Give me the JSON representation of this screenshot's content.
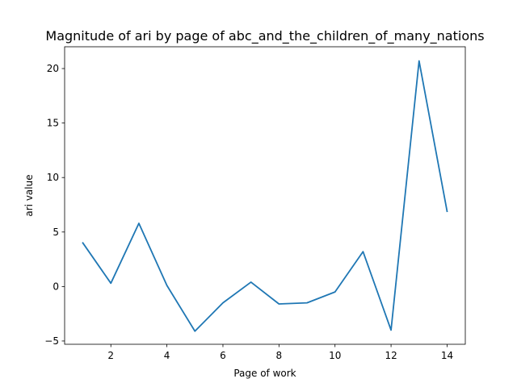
{
  "chart_data": {
    "type": "line",
    "title": "Magnitude of ari by page of abc_and_the_children_of_many_nations",
    "xlabel": "Page of work",
    "ylabel": "ari value",
    "xlim": [
      0.35,
      14.65
    ],
    "ylim": [
      -5.3,
      22.0
    ],
    "xticks": [
      2,
      4,
      6,
      8,
      10,
      12,
      14
    ],
    "yticks": [
      -5,
      0,
      5,
      10,
      15,
      20
    ],
    "grid": false,
    "series": [
      {
        "name": "ari",
        "color": "#1f77b4",
        "x": [
          1,
          2,
          3,
          4,
          5,
          6,
          7,
          8,
          9,
          10,
          11,
          12,
          13,
          14
        ],
        "y": [
          4.0,
          0.3,
          5.8,
          0.1,
          -4.1,
          -1.5,
          0.4,
          -1.6,
          -1.5,
          -0.5,
          3.2,
          -4.0,
          20.7,
          6.9
        ]
      }
    ]
  }
}
